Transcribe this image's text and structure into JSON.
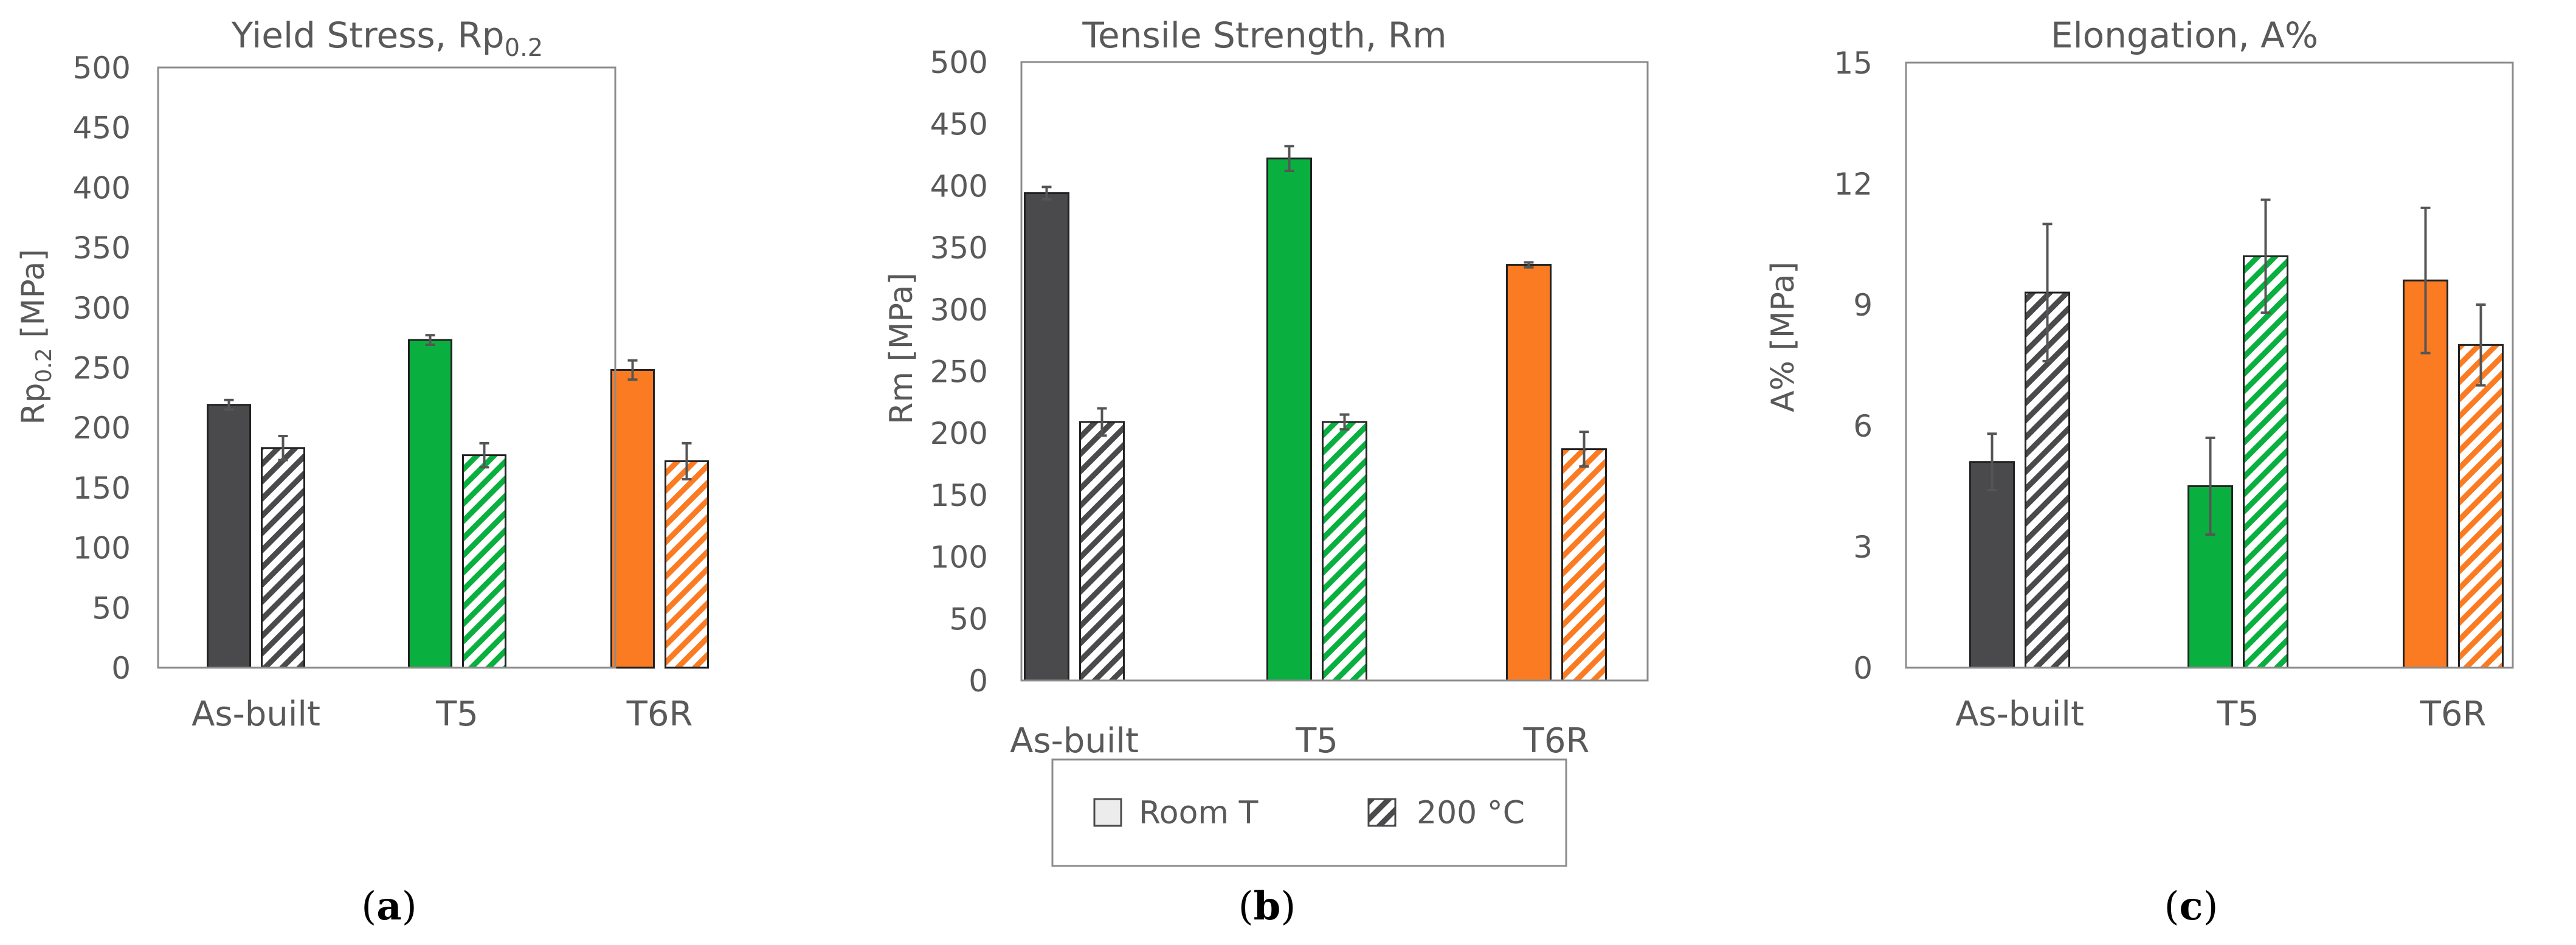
{
  "chart_data": [
    {
      "type": "bar",
      "title_main": "Yield Stress, Rp",
      "title_sub": "0.2",
      "ylabel_main": "Rp",
      "ylabel_sub": "0.2",
      "ylabel_rest": "  [MPa]",
      "ylim": [
        0,
        500
      ],
      "yticks": [
        "0",
        "50",
        "100",
        "150",
        "200",
        "250",
        "300",
        "350",
        "400",
        "450",
        "500"
      ],
      "categories": [
        "As-built",
        "T5",
        "T6R"
      ],
      "series": [
        {
          "name": "Room T",
          "values": [
            219,
            273,
            248
          ],
          "errors": [
            4,
            4,
            8
          ]
        },
        {
          "name": "200 °C",
          "values": [
            183,
            177,
            172
          ],
          "errors": [
            10,
            10,
            15
          ]
        }
      ],
      "caption_open": "(",
      "caption_letter": "a",
      "caption_close": ")"
    },
    {
      "type": "bar",
      "title_main": "Tensile Strength, Rm",
      "ylabel_main": "Rm [MPa]",
      "ylim": [
        0,
        500
      ],
      "yticks": [
        "0",
        "50",
        "100",
        "150",
        "200",
        "250",
        "300",
        "350",
        "400",
        "450",
        "500"
      ],
      "categories": [
        "As-built",
        "T5",
        "T6R"
      ],
      "series": [
        {
          "name": "Room T",
          "values": [
            394,
            422,
            336
          ],
          "errors": [
            5,
            10,
            2
          ]
        },
        {
          "name": "200 °C",
          "values": [
            209,
            209,
            187
          ],
          "errors": [
            11,
            6,
            14
          ]
        }
      ],
      "caption_open": "(",
      "caption_letter": "b",
      "caption_close": ")"
    },
    {
      "type": "bar",
      "title_main": "Elongation, A%",
      "ylabel_main": "A%  [MPa]",
      "ylim": [
        0,
        15
      ],
      "yticks": [
        "0",
        "3",
        "6",
        "9",
        "12",
        "15"
      ],
      "categories": [
        "As-built",
        "T5",
        "T6R"
      ],
      "series": [
        {
          "name": "Room T",
          "values": [
            5.1,
            4.5,
            9.6
          ],
          "errors": [
            0.7,
            1.2,
            1.8
          ]
        },
        {
          "name": "200 °C",
          "values": [
            9.3,
            10.2,
            8.0
          ],
          "errors": [
            1.7,
            1.4,
            1.0
          ]
        }
      ],
      "caption_open": "(",
      "caption_letter": "c",
      "caption_close": ")"
    }
  ],
  "legend": {
    "room_label": "Room T",
    "hot_label": "200 °C"
  },
  "colors": {
    "as_built": "#4a4a4c",
    "t5": "#09b03f",
    "t6r": "#fb7b22",
    "axis": "#8c8c8c",
    "text": "#595959"
  }
}
